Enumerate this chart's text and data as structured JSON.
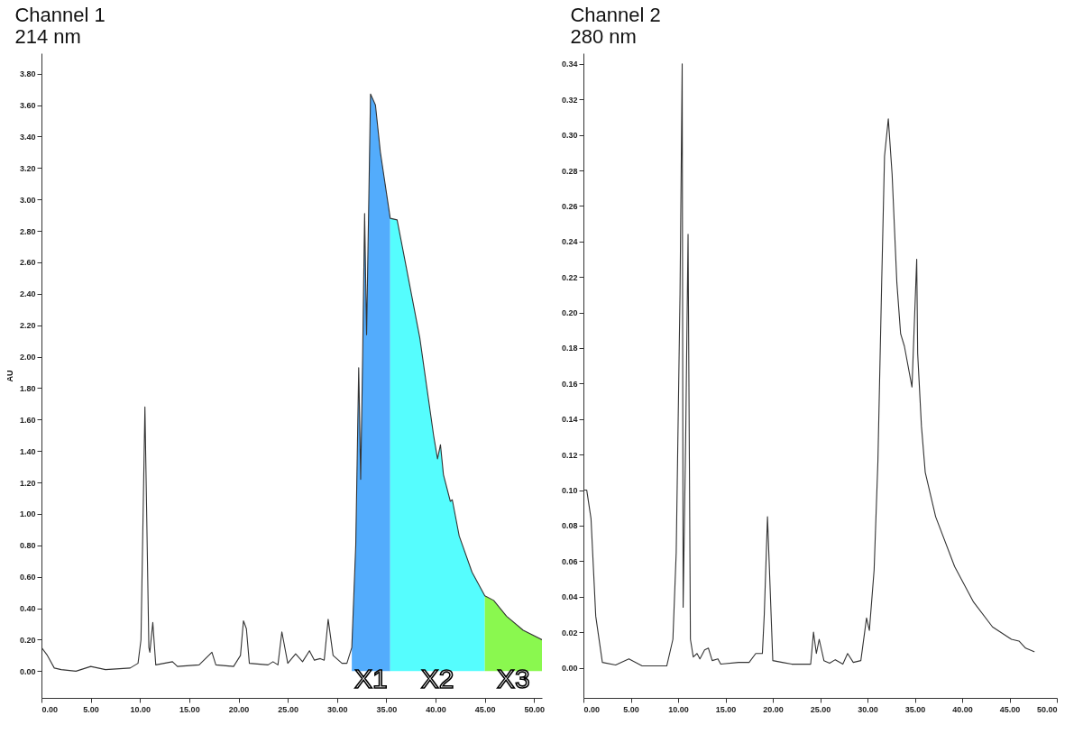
{
  "chart_data": [
    {
      "type": "line",
      "title": "Channel 1",
      "subtitle": "214 nm",
      "ylabel": "AU",
      "series": [
        {
          "type": "area",
          "name": "X1",
          "color": "#53acfc",
          "x": [
            31.5,
            31.9,
            32.2,
            32.4,
            32.6,
            32.8,
            33.0,
            33.4,
            33.9,
            34.4,
            35.4
          ],
          "values": [
            0.15,
            0.8,
            1.93,
            1.22,
            2.0,
            2.91,
            2.14,
            3.67,
            3.6,
            3.3,
            2.88
          ]
        },
        {
          "type": "area",
          "name": "X2",
          "color": "#55fdfe",
          "x": [
            35.4,
            36.1,
            36.9,
            38.4,
            39.8,
            40.2,
            40.5,
            40.8,
            41.5,
            41.7,
            42.4,
            43.7,
            45.0
          ],
          "values": [
            2.88,
            2.87,
            2.61,
            2.12,
            1.5,
            1.35,
            1.44,
            1.25,
            1.08,
            1.09,
            0.86,
            0.63,
            0.48
          ]
        },
        {
          "type": "area",
          "name": "X3",
          "color": "#8af84f",
          "x": [
            45.0,
            45.9,
            47.2,
            48.9,
            50.8
          ],
          "values": [
            0.48,
            0.45,
            0.35,
            0.26,
            0.2
          ]
        },
        {
          "type": "line",
          "color": "#333333",
          "x": [
            0,
            0.6,
            1.3,
            2,
            3.5,
            5.0,
            6.5,
            9.0,
            9.8,
            10.1,
            10.5,
            10.9,
            11.0,
            11.3,
            11.6,
            13.3,
            13.8,
            16.0,
            17.3,
            17.7,
            19.5,
            20.2,
            20.5,
            20.8,
            21.1,
            23.0,
            23.5,
            24.0,
            24.4,
            25.0,
            25.8,
            26.5,
            27.2,
            27.7,
            28.3,
            28.7,
            29.1,
            29.6,
            30.5,
            31.0,
            31.5,
            31.9,
            32.2,
            32.4,
            32.6,
            32.8,
            33.0,
            33.4,
            33.9,
            34.4,
            35.4,
            36.1,
            36.9,
            38.4,
            39.8,
            40.2,
            40.5,
            40.8,
            41.5,
            41.7,
            42.4,
            43.7,
            45.0,
            45.9,
            47.2,
            48.9,
            50.8
          ],
          "values": [
            0.15,
            0.1,
            0.02,
            0.01,
            0.0,
            0.03,
            0.01,
            0.02,
            0.05,
            0.2,
            1.68,
            0.15,
            0.12,
            0.31,
            0.04,
            0.06,
            0.03,
            0.04,
            0.12,
            0.04,
            0.03,
            0.1,
            0.32,
            0.27,
            0.05,
            0.04,
            0.06,
            0.04,
            0.25,
            0.05,
            0.11,
            0.06,
            0.13,
            0.07,
            0.08,
            0.07,
            0.33,
            0.1,
            0.05,
            0.05,
            0.15,
            0.8,
            1.93,
            1.22,
            2.0,
            2.91,
            2.14,
            3.67,
            3.6,
            3.3,
            2.88,
            2.87,
            2.61,
            2.12,
            1.5,
            1.35,
            1.44,
            1.25,
            1.08,
            1.09,
            0.86,
            0.63,
            0.48,
            0.45,
            0.35,
            0.26,
            0.2
          ]
        }
      ],
      "xlim": [
        0,
        50.8
      ],
      "xticks": [
        {
          "value": 0,
          "label": "0.00"
        },
        {
          "value": 5,
          "label": "5.00"
        },
        {
          "value": 10,
          "label": "10.00"
        },
        {
          "value": 15,
          "label": "15.00"
        },
        {
          "value": 20,
          "label": "20.00"
        },
        {
          "value": 25,
          "label": "25.00"
        },
        {
          "value": 30,
          "label": "30.00"
        },
        {
          "value": 35,
          "label": "35.00"
        },
        {
          "value": 40,
          "label": "40.00"
        },
        {
          "value": 45,
          "label": "45.00"
        },
        {
          "value": 50,
          "label": "50.00"
        }
      ],
      "ylim": [
        -0.17,
        3.93
      ],
      "yticks": [
        {
          "value": 0,
          "label": "0.00"
        },
        {
          "value": 0.2,
          "label": "0.20"
        },
        {
          "value": 0.4,
          "label": "0.40"
        },
        {
          "value": 0.6,
          "label": "0.60"
        },
        {
          "value": 0.8,
          "label": "0.80"
        },
        {
          "value": 1.0,
          "label": "1.00"
        },
        {
          "value": 1.2,
          "label": "1.20"
        },
        {
          "value": 1.4,
          "label": "1.40"
        },
        {
          "value": 1.6,
          "label": "1.60"
        },
        {
          "value": 1.8,
          "label": "1.80"
        },
        {
          "value": 2.0,
          "label": "2.00"
        },
        {
          "value": 2.2,
          "label": "2.20"
        },
        {
          "value": 2.4,
          "label": "2.40"
        },
        {
          "value": 2.6,
          "label": "2.60"
        },
        {
          "value": 2.8,
          "label": "2.80"
        },
        {
          "value": 3.0,
          "label": "3.00"
        },
        {
          "value": 3.2,
          "label": "3.20"
        },
        {
          "value": 3.4,
          "label": "3.40"
        },
        {
          "value": 3.6,
          "label": "3.60"
        },
        {
          "value": 3.8,
          "label": "3.80"
        }
      ]
    },
    {
      "type": "line",
      "title": "Channel 2",
      "subtitle": "280 nm",
      "color": "#333333",
      "x": [
        0,
        0.35,
        0.8,
        1.3,
        2.0,
        3.4,
        4.8,
        6.2,
        8.8,
        9.45,
        9.8,
        10.2,
        10.43,
        10.53,
        10.8,
        11.05,
        11.3,
        11.6,
        12.0,
        12.3,
        12.8,
        13.2,
        13.6,
        14.2,
        14.5,
        16.4,
        17.5,
        18.2,
        18.9,
        19.1,
        19.44,
        20.0,
        21,
        22,
        23.5,
        24.0,
        24.3,
        24.6,
        24.9,
        25.4,
        26.0,
        26.6,
        27.4,
        27.9,
        28.5,
        29.3,
        29.9,
        30.2,
        30.7,
        31.1,
        31.5,
        31.8,
        32.2,
        32.6,
        33.1,
        33.5,
        33.9,
        34.7,
        35.2,
        35.3,
        35.7,
        36.1,
        37.2,
        39.2,
        41.2,
        43.2,
        45.2,
        46.0,
        46.7,
        47.6
      ],
      "values": [
        0.1,
        0.1,
        0.084,
        0.029,
        0.003,
        0.0015,
        0.005,
        0.001,
        0.001,
        0.016,
        0.065,
        0.21,
        0.34,
        0.034,
        0.13,
        0.244,
        0.016,
        0.006,
        0.008,
        0.005,
        0.01,
        0.011,
        0.004,
        0.005,
        0.002,
        0.003,
        0.003,
        0.008,
        0.008,
        0.03,
        0.085,
        0.004,
        0.003,
        0.002,
        0.002,
        0.002,
        0.02,
        0.008,
        0.016,
        0.004,
        0.0025,
        0.0045,
        0.002,
        0.008,
        0.003,
        0.004,
        0.028,
        0.021,
        0.055,
        0.116,
        0.217,
        0.288,
        0.309,
        0.278,
        0.217,
        0.188,
        0.181,
        0.158,
        0.23,
        0.177,
        0.136,
        0.11,
        0.085,
        0.057,
        0.037,
        0.023,
        0.016,
        0.015,
        0.011,
        0.009
      ],
      "xlim": [
        0,
        50
      ],
      "xticks": [
        {
          "value": 0,
          "label": "0.00"
        },
        {
          "value": 5,
          "label": "5.00"
        },
        {
          "value": 10,
          "label": "10.00"
        },
        {
          "value": 15,
          "label": "15.00"
        },
        {
          "value": 20,
          "label": "20.00"
        },
        {
          "value": 25,
          "label": "25.00"
        },
        {
          "value": 30,
          "label": "30.00"
        },
        {
          "value": 35,
          "label": "35.00"
        },
        {
          "value": 40,
          "label": "40.00"
        },
        {
          "value": 45,
          "label": "45.00"
        },
        {
          "value": 50,
          "label": "50.00"
        }
      ],
      "ylim": [
        -0.017,
        0.346
      ],
      "yticks": [
        {
          "value": 0,
          "label": "0.00"
        },
        {
          "value": 0.02,
          "label": "0.02"
        },
        {
          "value": 0.04,
          "label": "0.04"
        },
        {
          "value": 0.06,
          "label": "0.06"
        },
        {
          "value": 0.08,
          "label": "0.08"
        },
        {
          "value": 0.1,
          "label": "0.10"
        },
        {
          "value": 0.12,
          "label": "0.12"
        },
        {
          "value": 0.14,
          "label": "0.14"
        },
        {
          "value": 0.16,
          "label": "0.16"
        },
        {
          "value": 0.18,
          "label": "0.18"
        },
        {
          "value": 0.2,
          "label": "0.20"
        },
        {
          "value": 0.22,
          "label": "0.22"
        },
        {
          "value": 0.24,
          "label": "0.24"
        },
        {
          "value": 0.26,
          "label": "0.26"
        },
        {
          "value": 0.28,
          "label": "0.28"
        },
        {
          "value": 0.3,
          "label": "0.30"
        },
        {
          "value": 0.32,
          "label": "0.32"
        },
        {
          "value": 0.34,
          "label": "0.34"
        }
      ]
    }
  ]
}
